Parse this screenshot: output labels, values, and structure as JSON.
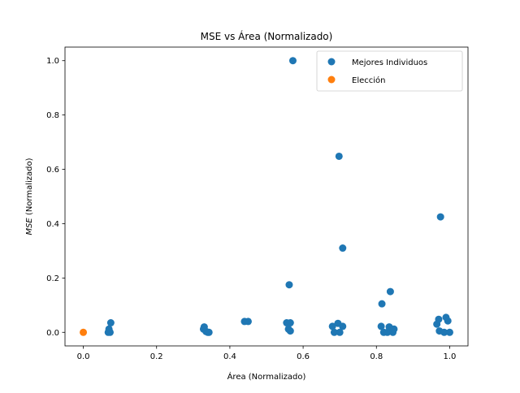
{
  "chart_data": {
    "type": "scatter",
    "title": "MSE vs Área (Normalizado)",
    "xlabel": "Área (Normalizado)",
    "ylabel": "MSE (Normalizado)",
    "ylabel_italic_part": "MSE",
    "ylabel_rest": " (Normalizado)",
    "xlim": [
      -0.05,
      1.05
    ],
    "ylim": [
      -0.05,
      1.05
    ],
    "xticks": [
      0.0,
      0.2,
      0.4,
      0.6,
      0.8,
      1.0
    ],
    "yticks": [
      0.0,
      0.2,
      0.4,
      0.6,
      0.8,
      1.0
    ],
    "xtick_labels": [
      "0.0",
      "0.2",
      "0.4",
      "0.6",
      "0.8",
      "1.0"
    ],
    "ytick_labels": [
      "0.0",
      "0.2",
      "0.4",
      "0.6",
      "0.8",
      "1.0"
    ],
    "grid": false,
    "legend_position": "top-right",
    "series": [
      {
        "name": "Mejores Individuos",
        "color": "#1f77b4",
        "points": [
          [
            0.068,
            0.0
          ],
          [
            0.07,
            0.003
          ],
          [
            0.07,
            0.012
          ],
          [
            0.073,
            0.0
          ],
          [
            0.075,
            0.035
          ],
          [
            0.328,
            0.012
          ],
          [
            0.33,
            0.02
          ],
          [
            0.335,
            0.003
          ],
          [
            0.34,
            0.0
          ],
          [
            0.343,
            0.0
          ],
          [
            0.44,
            0.04
          ],
          [
            0.45,
            0.04
          ],
          [
            0.555,
            0.035
          ],
          [
            0.56,
            0.012
          ],
          [
            0.562,
            0.175
          ],
          [
            0.565,
            0.035
          ],
          [
            0.565,
            0.005
          ],
          [
            0.572,
            1.0
          ],
          [
            0.68,
            0.022
          ],
          [
            0.685,
            0.0
          ],
          [
            0.695,
            0.033
          ],
          [
            0.698,
            0.648
          ],
          [
            0.7,
            0.0
          ],
          [
            0.708,
            0.31
          ],
          [
            0.708,
            0.022
          ],
          [
            0.813,
            0.022
          ],
          [
            0.815,
            0.105
          ],
          [
            0.82,
            0.0
          ],
          [
            0.83,
            0.0
          ],
          [
            0.835,
            0.02
          ],
          [
            0.838,
            0.15
          ],
          [
            0.84,
            0.005
          ],
          [
            0.845,
            0.0
          ],
          [
            0.848,
            0.012
          ],
          [
            0.965,
            0.03
          ],
          [
            0.97,
            0.048
          ],
          [
            0.972,
            0.005
          ],
          [
            0.975,
            0.425
          ],
          [
            0.985,
            0.0
          ],
          [
            0.99,
            0.055
          ],
          [
            0.995,
            0.042
          ],
          [
            1.0,
            0.0
          ]
        ]
      },
      {
        "name": "Elección",
        "color": "#ff7f0e",
        "points": [
          [
            0.0,
            0.0
          ]
        ]
      }
    ]
  }
}
